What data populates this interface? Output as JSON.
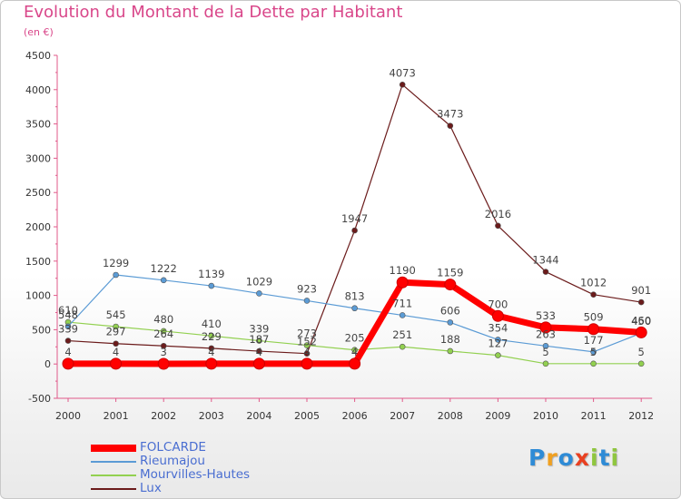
{
  "title": "Evolution du Montant de la Dette par Habitant",
  "subtitle": "(en €)",
  "logo": {
    "text": "Proxiti",
    "colors": [
      "#2e8bd6",
      "#f0a020",
      "#2e8bd6",
      "#e94020",
      "#8fc63f",
      "#2e8bd6",
      "#8fc63f"
    ]
  },
  "chart_data": {
    "type": "line",
    "title": "Evolution du Montant de la Dette par Habitant",
    "subtitle": "(en €)",
    "xlabel": "",
    "ylabel": "",
    "ylim": [
      -500,
      4500
    ],
    "yticks": [
      "-500",
      "0",
      "500",
      "1000",
      "1500",
      "2000",
      "2500",
      "3000",
      "3500",
      "4000",
      "4500"
    ],
    "grid": false,
    "legend_position": "bottom-left",
    "categories": [
      "2000",
      "2001",
      "2002",
      "2003",
      "2004",
      "2005",
      "2006",
      "2007",
      "2008",
      "2009",
      "2010",
      "2011",
      "2012"
    ],
    "series": [
      {
        "name": "FOLCARDE",
        "color": "#ff0000",
        "values": [
          4,
          4,
          3,
          4,
          4,
          4,
          4,
          1190,
          1159,
          700,
          533,
          509,
          460
        ]
      },
      {
        "name": "Rieumajou",
        "color": "#5b9bd5",
        "values": [
          548,
          1299,
          1222,
          1139,
          1029,
          923,
          813,
          711,
          606,
          354,
          263,
          177,
          450
        ]
      },
      {
        "name": "Mourvilles-Hautes",
        "color": "#92d050",
        "values": [
          610,
          545,
          480,
          410,
          339,
          273,
          205,
          251,
          188,
          127,
          5,
          5,
          5
        ]
      },
      {
        "name": "Lux",
        "color": "#6b1b1b",
        "values": [
          339,
          297,
          264,
          229,
          187,
          152,
          1947,
          4073,
          3473,
          2016,
          1344,
          1012,
          901
        ]
      }
    ]
  }
}
